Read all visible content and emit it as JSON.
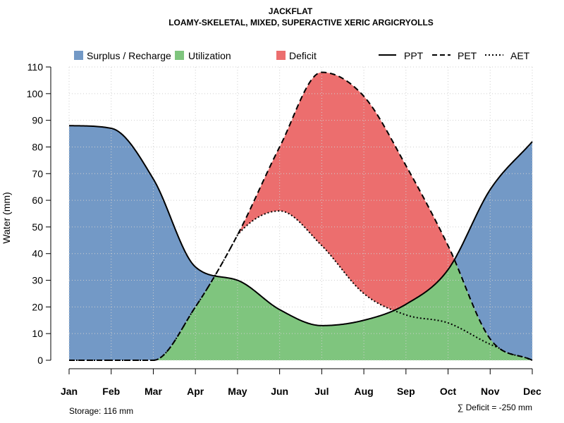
{
  "chart_data": {
    "type": "area",
    "title": "JACKFLAT",
    "subtitle": "LOAMY-SKELETAL, MIXED, SUPERACTIVE XERIC ARGICRYOLLS",
    "xlabel": "",
    "ylabel": "Water (mm)",
    "categories": [
      "Jan",
      "Feb",
      "Mar",
      "Apr",
      "May",
      "Jun",
      "Jul",
      "Aug",
      "Sep",
      "Oct",
      "Nov",
      "Dec"
    ],
    "ylim": [
      0,
      110
    ],
    "yticks": [
      0,
      10,
      20,
      30,
      40,
      50,
      60,
      70,
      80,
      90,
      100,
      110
    ],
    "grid": true,
    "series": [
      {
        "name": "PPT",
        "line": "solid",
        "values": [
          88,
          87,
          68,
          35,
          30,
          19,
          13,
          15,
          21,
          34,
          64,
          82
        ]
      },
      {
        "name": "PET",
        "line": "dashed",
        "values": [
          0,
          0,
          0,
          20,
          47,
          80,
          108,
          99,
          73,
          43,
          8,
          0
        ]
      },
      {
        "name": "AET",
        "line": "dotted",
        "values": [
          0,
          0,
          0,
          20,
          47,
          56,
          43,
          25,
          17,
          14,
          6,
          0
        ]
      }
    ],
    "legend": {
      "position": "top",
      "fills": [
        {
          "label": "Surplus / Recharge",
          "color": "#7399c6"
        },
        {
          "label": "Utilization",
          "color": "#7fc57e"
        },
        {
          "label": "Deficit",
          "color": "#ec6e6e"
        }
      ],
      "lines": [
        {
          "label": "PPT",
          "style": "solid"
        },
        {
          "label": "PET",
          "style": "dashed"
        },
        {
          "label": "AET",
          "style": "dotted"
        }
      ]
    },
    "annotations": {
      "storage": "Storage: 116 mm",
      "deficit": "∑ Deficit = -250 mm"
    },
    "colors": {
      "surplus": "#7399c6",
      "utilization": "#7fc57e",
      "deficit": "#ec6e6e",
      "grid": "#cfcfcf",
      "line": "#000000"
    }
  }
}
